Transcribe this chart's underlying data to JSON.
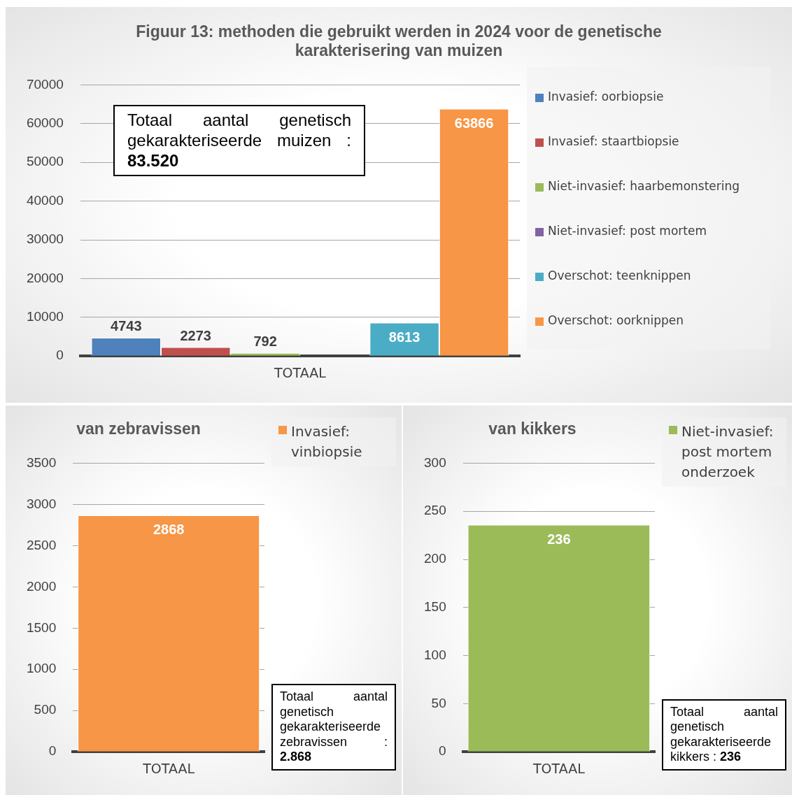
{
  "chart_data": [
    {
      "type": "bar",
      "title": "Figuur 13: methoden die gebruikt werden in 2024 voor de genetische karakterisering van muizen",
      "categories": [
        "TOTAAL"
      ],
      "series": [
        {
          "name": "Invasief: oorbiopsie",
          "color": "#4f81bd",
          "values": [
            4743
          ]
        },
        {
          "name": "Invasief: staartbiopsie",
          "color": "#c0504d",
          "values": [
            2273
          ]
        },
        {
          "name": "Niet-invasief: haarbemonstering",
          "color": "#9bbb59",
          "values": [
            792
          ]
        },
        {
          "name": "Niet-invasief: post mortem",
          "color": "#8064a2",
          "values": [
            null
          ]
        },
        {
          "name": "Overschot: teenknippen",
          "color": "#4bacc6",
          "values": [
            8613
          ]
        },
        {
          "name": "Overschot: oorknippen",
          "color": "#f79646",
          "values": [
            63866
          ]
        }
      ],
      "ylim": [
        0,
        70000
      ],
      "yticks": [
        0,
        10000,
        20000,
        30000,
        40000,
        50000,
        60000,
        70000
      ],
      "grid": "y",
      "legend": "right",
      "data_labels": true,
      "annotations": [
        "Totaal aantal genetisch gekarakteriseerde muizen : 83.520"
      ]
    },
    {
      "type": "bar",
      "title": "van zebravissen",
      "categories": [
        "TOTAAL"
      ],
      "series": [
        {
          "name": "Invasief: vinbiopsie",
          "color": "#f79646",
          "values": [
            2868
          ]
        }
      ],
      "ylim": [
        0,
        3500
      ],
      "yticks": [
        0,
        500,
        1000,
        1500,
        2000,
        2500,
        3000,
        3500
      ],
      "grid": "y",
      "legend": "right",
      "data_labels": true,
      "annotations": [
        "Totaal aantal genetisch gekarakteriseerde zebravissen : 2.868"
      ]
    },
    {
      "type": "bar",
      "title": "van kikkers",
      "categories": [
        "TOTAAL"
      ],
      "series": [
        {
          "name": "Niet-invasief: post mortem onderzoek",
          "color": "#9bbb59",
          "values": [
            236
          ]
        }
      ],
      "ylim": [
        0,
        300
      ],
      "yticks": [
        0,
        50,
        100,
        150,
        200,
        250,
        300
      ],
      "grid": "y",
      "legend": "right",
      "data_labels": true,
      "annotations": [
        "Totaal aantal genetisch gekarakteriseerde kikkers : 236"
      ]
    }
  ]
}
